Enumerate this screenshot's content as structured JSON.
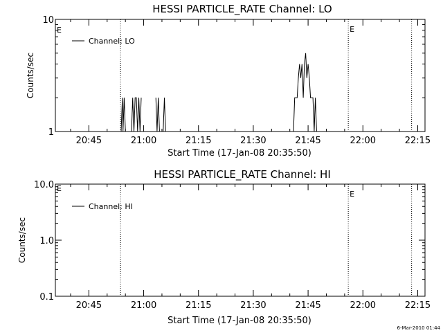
{
  "footer": {
    "timestamp": "6-Mar-2010 01:44"
  },
  "chart_data": [
    {
      "type": "line",
      "title": "HESSI PARTICLE_RATE Channel: LO",
      "xlabel": "Start Time (17-Jan-08 20:35:50)",
      "ylabel": "Counts/sec",
      "yscale": "log",
      "ylim": [
        1,
        10
      ],
      "yticks": [
        {
          "value": 1,
          "label": "1"
        },
        {
          "value": 10,
          "label": "10"
        }
      ],
      "xlim": [
        "20:35:50",
        "22:17:00"
      ],
      "xticks": [
        "20:45",
        "21:00",
        "21:15",
        "21:30",
        "21:45",
        "22:00",
        "22:15"
      ],
      "legend": {
        "placement": "top-left",
        "entries": [
          "Channel: LO"
        ]
      },
      "markers": [
        {
          "time": "20:53:40",
          "label": "",
          "style": "dotted"
        },
        {
          "time": "21:56:00",
          "label": "E",
          "style": "dotted"
        },
        {
          "time": "22:13:20",
          "label": "",
          "style": "dotted"
        }
      ],
      "left_marker_label": "E",
      "series": [
        {
          "name": "Channel: LO",
          "points": [
            [
              "20:53:50",
              1
            ],
            [
              "20:54:10",
              2
            ],
            [
              "20:54:20",
              1
            ],
            [
              "20:54:40",
              2
            ],
            [
              "20:55:00",
              1
            ],
            [
              "20:56:40",
              1
            ],
            [
              "20:57:00",
              2
            ],
            [
              "20:57:20",
              1
            ],
            [
              "20:57:40",
              2
            ],
            [
              "20:58:00",
              2
            ],
            [
              "20:58:20",
              1
            ],
            [
              "20:58:40",
              2
            ],
            [
              "20:59:00",
              1
            ],
            [
              "20:59:20",
              2
            ],
            [
              "21:03:20",
              2
            ],
            [
              "21:03:40",
              1
            ],
            [
              "21:04:00",
              2
            ],
            [
              "21:04:20",
              1
            ],
            [
              "21:05:20",
              1
            ],
            [
              "21:05:40",
              2
            ],
            [
              "21:06:00",
              1
            ],
            [
              "21:41:00",
              1
            ],
            [
              "21:41:20",
              2
            ],
            [
              "21:42:00",
              2
            ],
            [
              "21:42:20",
              3
            ],
            [
              "21:42:40",
              4
            ],
            [
              "21:43:00",
              3
            ],
            [
              "21:43:20",
              4
            ],
            [
              "21:43:40",
              2
            ],
            [
              "21:44:00",
              4
            ],
            [
              "21:44:20",
              5
            ],
            [
              "21:44:40",
              3
            ],
            [
              "21:45:00",
              4
            ],
            [
              "21:45:20",
              3
            ],
            [
              "21:45:40",
              2
            ],
            [
              "21:46:20",
              2
            ],
            [
              "21:46:40",
              1
            ],
            [
              "21:47:00",
              2
            ],
            [
              "21:47:20",
              1
            ]
          ]
        }
      ]
    },
    {
      "type": "line",
      "title": "HESSI PARTICLE_RATE Channel: HI",
      "xlabel": "Start Time (17-Jan-08 20:35:50)",
      "ylabel": "Counts/sec",
      "yscale": "log",
      "ylim": [
        0.1,
        10
      ],
      "yticks": [
        {
          "value": 0.1,
          "label": "0.1"
        },
        {
          "value": 1,
          "label": "1.0"
        },
        {
          "value": 10,
          "label": "10.0"
        }
      ],
      "xlim": [
        "20:35:50",
        "22:17:00"
      ],
      "xticks": [
        "20:45",
        "21:00",
        "21:15",
        "21:30",
        "21:45",
        "22:00",
        "22:15"
      ],
      "legend": {
        "placement": "top-left",
        "entries": [
          "Channel: HI"
        ]
      },
      "markers": [
        {
          "time": "20:53:40",
          "label": "",
          "style": "dotted"
        },
        {
          "time": "21:56:00",
          "label": "E",
          "style": "dotted"
        },
        {
          "time": "22:13:20",
          "label": "",
          "style": "dotted"
        }
      ],
      "left_marker_label": "E",
      "series": [
        {
          "name": "Channel: HI",
          "points": []
        }
      ]
    }
  ]
}
